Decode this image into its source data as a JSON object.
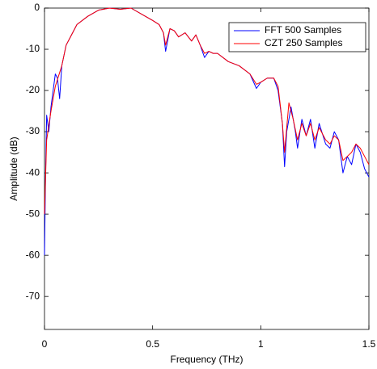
{
  "chart_data": {
    "type": "line",
    "xlabel": "Frequency (THz)",
    "ylabel": "Amplitude (dB)",
    "xlim": [
      0,
      1.5
    ],
    "xticks": [
      0,
      0.5,
      1,
      1.5
    ],
    "ylim": [
      -78,
      0
    ],
    "yticks": [
      -70,
      -60,
      -50,
      -40,
      -30,
      -20,
      -10,
      0
    ],
    "legend": "upper right",
    "grid": false,
    "series": [
      {
        "name": "FFT 500 Samples",
        "color": "#0000ff",
        "x": [
          0,
          0.005,
          0.01,
          0.02,
          0.03,
          0.04,
          0.05,
          0.06,
          0.07,
          0.08,
          0.1,
          0.12,
          0.15,
          0.2,
          0.25,
          0.3,
          0.35,
          0.4,
          0.45,
          0.5,
          0.53,
          0.55,
          0.56,
          0.58,
          0.6,
          0.62,
          0.65,
          0.68,
          0.7,
          0.72,
          0.74,
          0.76,
          0.78,
          0.8,
          0.85,
          0.9,
          0.95,
          0.98,
          1.0,
          1.03,
          1.06,
          1.08,
          1.1,
          1.11,
          1.12,
          1.14,
          1.16,
          1.17,
          1.19,
          1.21,
          1.23,
          1.25,
          1.27,
          1.3,
          1.32,
          1.34,
          1.36,
          1.38,
          1.4,
          1.42,
          1.44,
          1.46,
          1.48,
          1.5
        ],
        "values": [
          -60,
          -40,
          -26,
          -30,
          -24,
          -20,
          -16,
          -17,
          -22,
          -14,
          -9,
          -7,
          -4,
          -2,
          -0.5,
          0,
          -0.3,
          0,
          -1.5,
          -3,
          -4,
          -6,
          -10.5,
          -5,
          -5.5,
          -7,
          -6,
          -8,
          -6.5,
          -9,
          -12,
          -10.5,
          -11,
          -11,
          -13,
          -14,
          -16,
          -19.5,
          -18,
          -17,
          -17,
          -20,
          -28,
          -38.5,
          -30,
          -24,
          -30,
          -34,
          -27,
          -31,
          -27,
          -34,
          -28,
          -33,
          -34,
          -30,
          -32,
          -40,
          -36,
          -38,
          -33,
          -35,
          -39,
          -41
        ]
      },
      {
        "name": "CZT 250 Samples",
        "color": "#ff0000",
        "x": [
          0,
          0.01,
          0.03,
          0.05,
          0.08,
          0.1,
          0.12,
          0.15,
          0.2,
          0.25,
          0.3,
          0.35,
          0.4,
          0.45,
          0.5,
          0.53,
          0.55,
          0.56,
          0.58,
          0.6,
          0.62,
          0.65,
          0.68,
          0.7,
          0.72,
          0.74,
          0.76,
          0.78,
          0.8,
          0.85,
          0.9,
          0.95,
          0.98,
          1.0,
          1.03,
          1.06,
          1.08,
          1.1,
          1.11,
          1.13,
          1.15,
          1.17,
          1.19,
          1.21,
          1.23,
          1.25,
          1.27,
          1.3,
          1.32,
          1.34,
          1.36,
          1.38,
          1.4,
          1.42,
          1.44,
          1.46,
          1.48,
          1.5
        ],
        "values": [
          -50,
          -32,
          -25,
          -19,
          -14,
          -9,
          -7,
          -4,
          -2,
          -0.5,
          0,
          -0.3,
          0,
          -1.5,
          -3,
          -4,
          -6,
          -9,
          -5,
          -5.5,
          -7,
          -6,
          -8,
          -6.5,
          -9,
          -11,
          -10.5,
          -11,
          -11,
          -13,
          -14,
          -16,
          -18.5,
          -18,
          -17,
          -17,
          -19,
          -28,
          -35,
          -23,
          -27,
          -32,
          -28,
          -31,
          -28,
          -32,
          -29,
          -32,
          -33,
          -31,
          -32,
          -37,
          -36,
          -35,
          -33,
          -34,
          -36,
          -38
        ]
      }
    ]
  }
}
